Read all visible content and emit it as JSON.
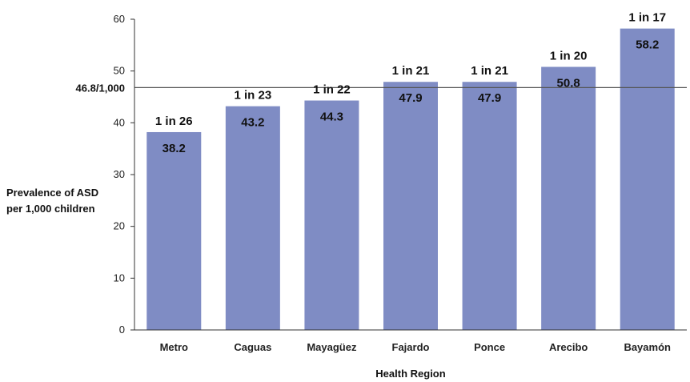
{
  "chart_data": {
    "type": "bar",
    "categories": [
      "Metro",
      "Caguas",
      "Mayagüez",
      "Fajardo",
      "Ponce",
      "Arecibo",
      "Bayamón"
    ],
    "values": [
      38.2,
      43.2,
      44.3,
      47.9,
      47.9,
      50.8,
      58.2
    ],
    "value_labels": [
      "38.2",
      "43.2",
      "44.3",
      "47.9",
      "47.9",
      "50.8",
      "58.2"
    ],
    "ratio_labels": [
      "1 in 26",
      "1 in 23",
      "1 in 22",
      "1 in 21",
      "1 in 21",
      "1 in 20",
      "1 in 17"
    ],
    "xlabel": "Health Region",
    "ylabel_lines": [
      "Prevalence of ASD",
      "per 1,000 children"
    ],
    "ylim": [
      0,
      60
    ],
    "yticks": [
      0,
      10,
      20,
      30,
      40,
      50,
      60
    ],
    "reference_line": {
      "value": 46.8,
      "label": "46.8/1,000"
    },
    "grid": false,
    "legend": "none",
    "colors": {
      "bar": "#7f8cc4",
      "axis": "#333333",
      "reference": "#555555"
    }
  }
}
